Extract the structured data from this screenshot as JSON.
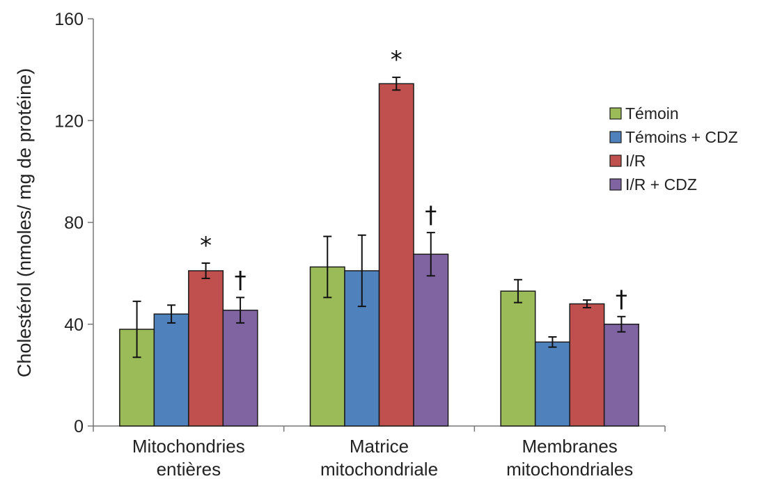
{
  "chart_data": {
    "type": "bar",
    "ylabel": "Cholestérol (nmoles/ mg de protéine)",
    "xlabel": "",
    "ylim": [
      0,
      160
    ],
    "yticks": [
      0,
      40,
      80,
      120,
      160
    ],
    "categories": [
      [
        "Mitochondries",
        "entières"
      ],
      [
        "Matrice",
        "mitochondriale"
      ],
      [
        "Membranes",
        "mitochondriales"
      ]
    ],
    "series": [
      {
        "name": "Témoin",
        "color": "#9bbb59",
        "values": [
          38,
          62.5,
          53
        ],
        "errors": [
          11,
          12,
          4.5
        ],
        "annotations": [
          "",
          "",
          ""
        ]
      },
      {
        "name": "Témoins + CDZ",
        "color": "#4f81bd",
        "values": [
          44,
          61,
          33
        ],
        "errors": [
          3.5,
          14,
          2
        ],
        "annotations": [
          "",
          "",
          ""
        ]
      },
      {
        "name": "I/R",
        "color": "#c0504d",
        "values": [
          61,
          134.5,
          48
        ],
        "errors": [
          3,
          2.5,
          1.5
        ],
        "annotations": [
          "*",
          "*",
          ""
        ]
      },
      {
        "name": "I/R + CDZ",
        "color": "#8064a2",
        "values": [
          45.5,
          67.5,
          40
        ],
        "errors": [
          5,
          8.5,
          3
        ],
        "annotations": [
          "†",
          "†",
          "†"
        ]
      }
    ],
    "legend_position": "right",
    "grid": false
  }
}
